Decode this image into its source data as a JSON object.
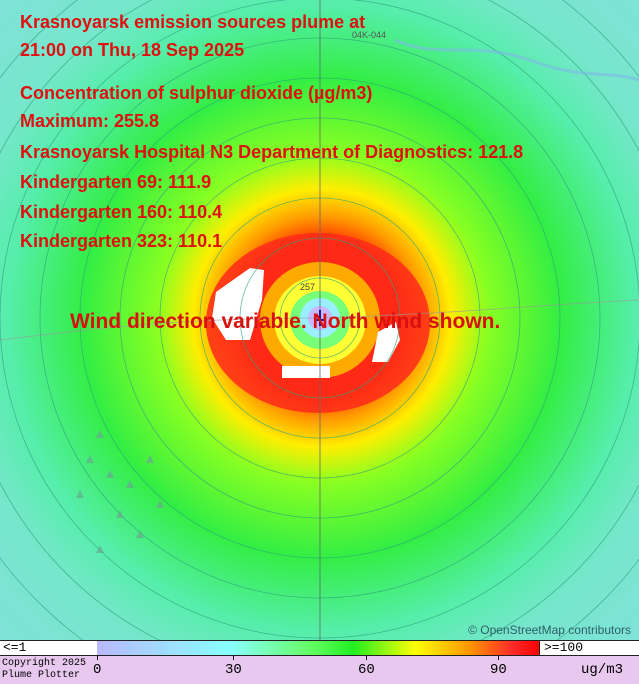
{
  "title_line1": "Krasnoyarsk emission sources plume at",
  "title_line2": "21:00 on Thu, 18 Sep 2025",
  "pollutant": "Concentration of sulphur dioxide (µg/m3)",
  "maximum": "Maximum: 255.8",
  "receptors": [
    "Krasnoyarsk Hospital N3 Department of Diagnostics: 121.8",
    "Kindergarten 69: 111.9",
    "Kindergarten 160: 110.4",
    "Kindergarten 323: 110.1"
  ],
  "wind_note": "Wind direction variable. North wind shown.",
  "map_labels": {
    "road": "04K-044",
    "peak_label": "257"
  },
  "attribution": "© OpenStreetMap contributors",
  "legend": {
    "low_label": "<=1",
    "high_label": ">=100",
    "ticks": [
      "0",
      "30",
      "60",
      "90"
    ],
    "units": "ug/m3",
    "copyright_line1": "Copyright 2025",
    "copyright_line2": "Plume Plotter"
  },
  "colors": {
    "text_red": "#e01010",
    "background_low": "#7fe6d6",
    "legend_background": "#e8c8ee"
  }
}
